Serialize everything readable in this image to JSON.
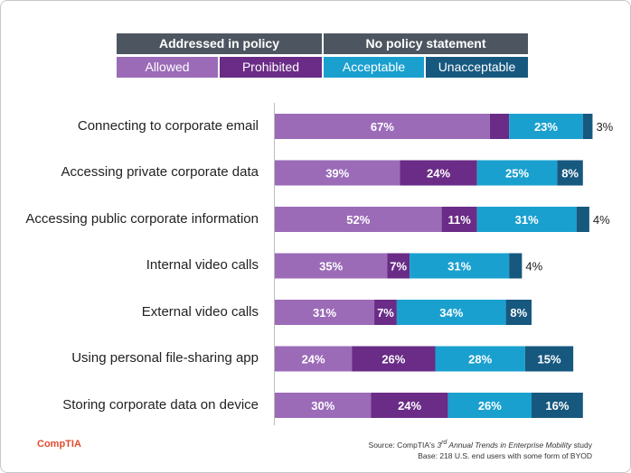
{
  "headers": {
    "addressed": "Addressed in policy",
    "no_policy": "No policy statement"
  },
  "legend": [
    {
      "label": "Allowed",
      "color": "#9b6bb8"
    },
    {
      "label": "Prohibited",
      "color": "#6a2c86"
    },
    {
      "label": "Acceptable",
      "color": "#1aa0cf"
    },
    {
      "label": "Unacceptable",
      "color": "#17587f"
    }
  ],
  "chart_data": {
    "type": "bar",
    "orientation": "horizontal",
    "stacked": true,
    "categories": [
      "Connecting to corporate email",
      "Accessing private corporate data",
      "Accessing public corporate information",
      "Internal video calls",
      "External video calls",
      "Using personal file-sharing app",
      "Storing corporate data on device"
    ],
    "series": [
      {
        "name": "Allowed",
        "values": [
          67,
          39,
          52,
          35,
          31,
          24,
          30
        ]
      },
      {
        "name": "Prohibited",
        "values": [
          6,
          24,
          11,
          7,
          7,
          26,
          24
        ]
      },
      {
        "name": "Acceptable",
        "values": [
          23,
          25,
          31,
          31,
          34,
          28,
          26
        ]
      },
      {
        "name": "Unacceptable",
        "values": [
          3,
          8,
          4,
          4,
          8,
          15,
          16
        ]
      }
    ],
    "unit": "%",
    "xlim": [
      0,
      100
    ]
  },
  "footer": {
    "logo": "CompTIA",
    "source_prefix": "Source: CompTIA's ",
    "source_ordinal": "3",
    "source_ordinal_sup": "rd",
    "source_title": " Annual Trends in Enterprise Mobility",
    "source_suffix": " study",
    "base": "Base: 218 U.S. end users with some form of BYOD"
  }
}
